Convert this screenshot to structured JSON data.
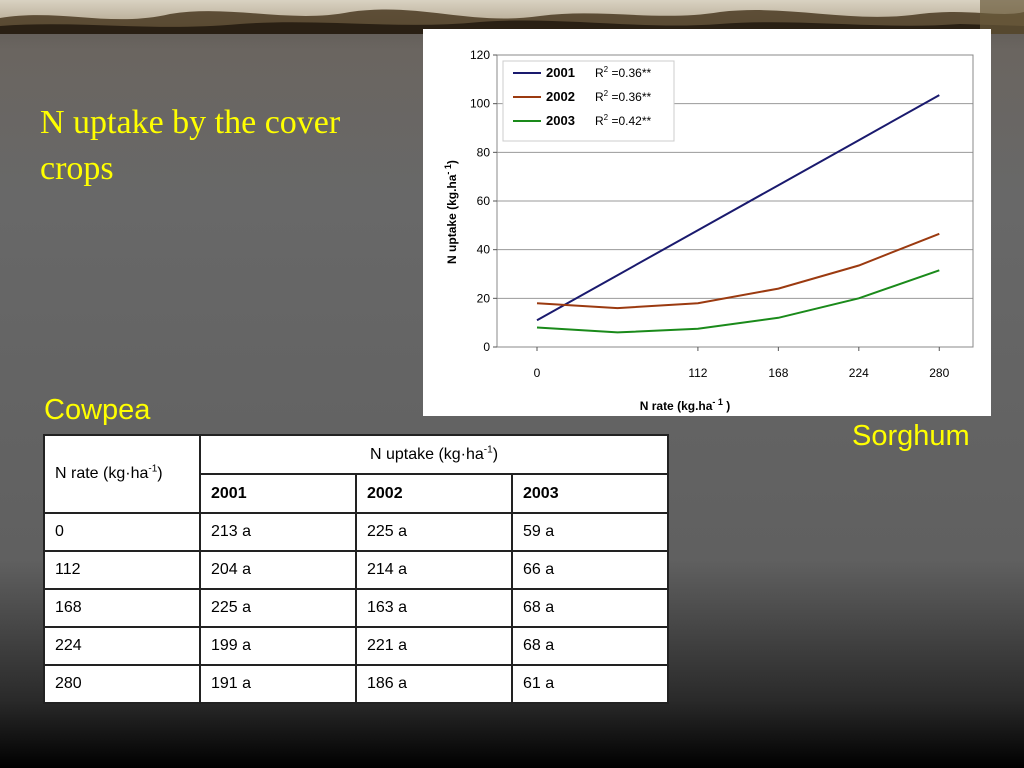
{
  "slide": {
    "title": "N uptake by the cover crops",
    "left_caption": "Cowpea",
    "right_caption": "Sorghum"
  },
  "chart_data": {
    "type": "line",
    "xlabel_prefix": "N rate (kg.ha",
    "xlabel_sup": "- 1",
    "xlabel_suffix": " )",
    "ylabel_prefix": "N uptake (kg.ha",
    "ylabel_sup": "- 1",
    "ylabel_suffix": ")",
    "x_ticks": [
      0,
      112,
      168,
      224,
      280
    ],
    "ylim": [
      0,
      120
    ],
    "y_ticks": [
      0,
      20,
      40,
      60,
      80,
      100,
      120
    ],
    "grid": true,
    "legend_position": "top-left",
    "series": [
      {
        "name": "2001",
        "r2_prefix": "R",
        "r2_sup": "2",
        "r2_value": " =0.36**",
        "color": "#1a1a6e",
        "x": [
          0,
          56,
          112,
          168,
          224,
          280
        ],
        "y": [
          11,
          29.5,
          48,
          66.5,
          85,
          103.5
        ]
      },
      {
        "name": "2002",
        "r2_prefix": "R",
        "r2_sup": "2",
        "r2_value": " =0.36**",
        "color": "#9b3a10",
        "x": [
          0,
          56,
          112,
          168,
          224,
          280
        ],
        "y": [
          18,
          16,
          18,
          24,
          33.5,
          46.5
        ]
      },
      {
        "name": "2003",
        "r2_prefix": "R",
        "r2_sup": "2",
        "r2_value": " =0.42**",
        "color": "#1a8a1a",
        "x": [
          0,
          56,
          112,
          168,
          224,
          280
        ],
        "y": [
          8,
          6,
          7.5,
          12,
          20,
          31.5
        ]
      }
    ]
  },
  "table": {
    "rate_header_prefix": "N rate (kg·ha",
    "rate_header_sup": "-1",
    "rate_header_suffix": ")",
    "uptake_header_prefix": "N uptake (kg·ha",
    "uptake_header_sup": "-1",
    "uptake_header_suffix": ")",
    "years": [
      "2001",
      "2002",
      "2003"
    ],
    "rows": [
      {
        "rate": "0",
        "values": [
          "213 a",
          "225 a",
          "59 a"
        ]
      },
      {
        "rate": "112",
        "values": [
          "204 a",
          "214 a",
          "66 a"
        ]
      },
      {
        "rate": "168",
        "values": [
          "225 a",
          "163 a",
          "68 a"
        ]
      },
      {
        "rate": "224",
        "values": [
          "199 a",
          "221 a",
          "68 a"
        ]
      },
      {
        "rate": "280",
        "values": [
          "191 a",
          "186 a",
          "61 a"
        ]
      }
    ]
  }
}
